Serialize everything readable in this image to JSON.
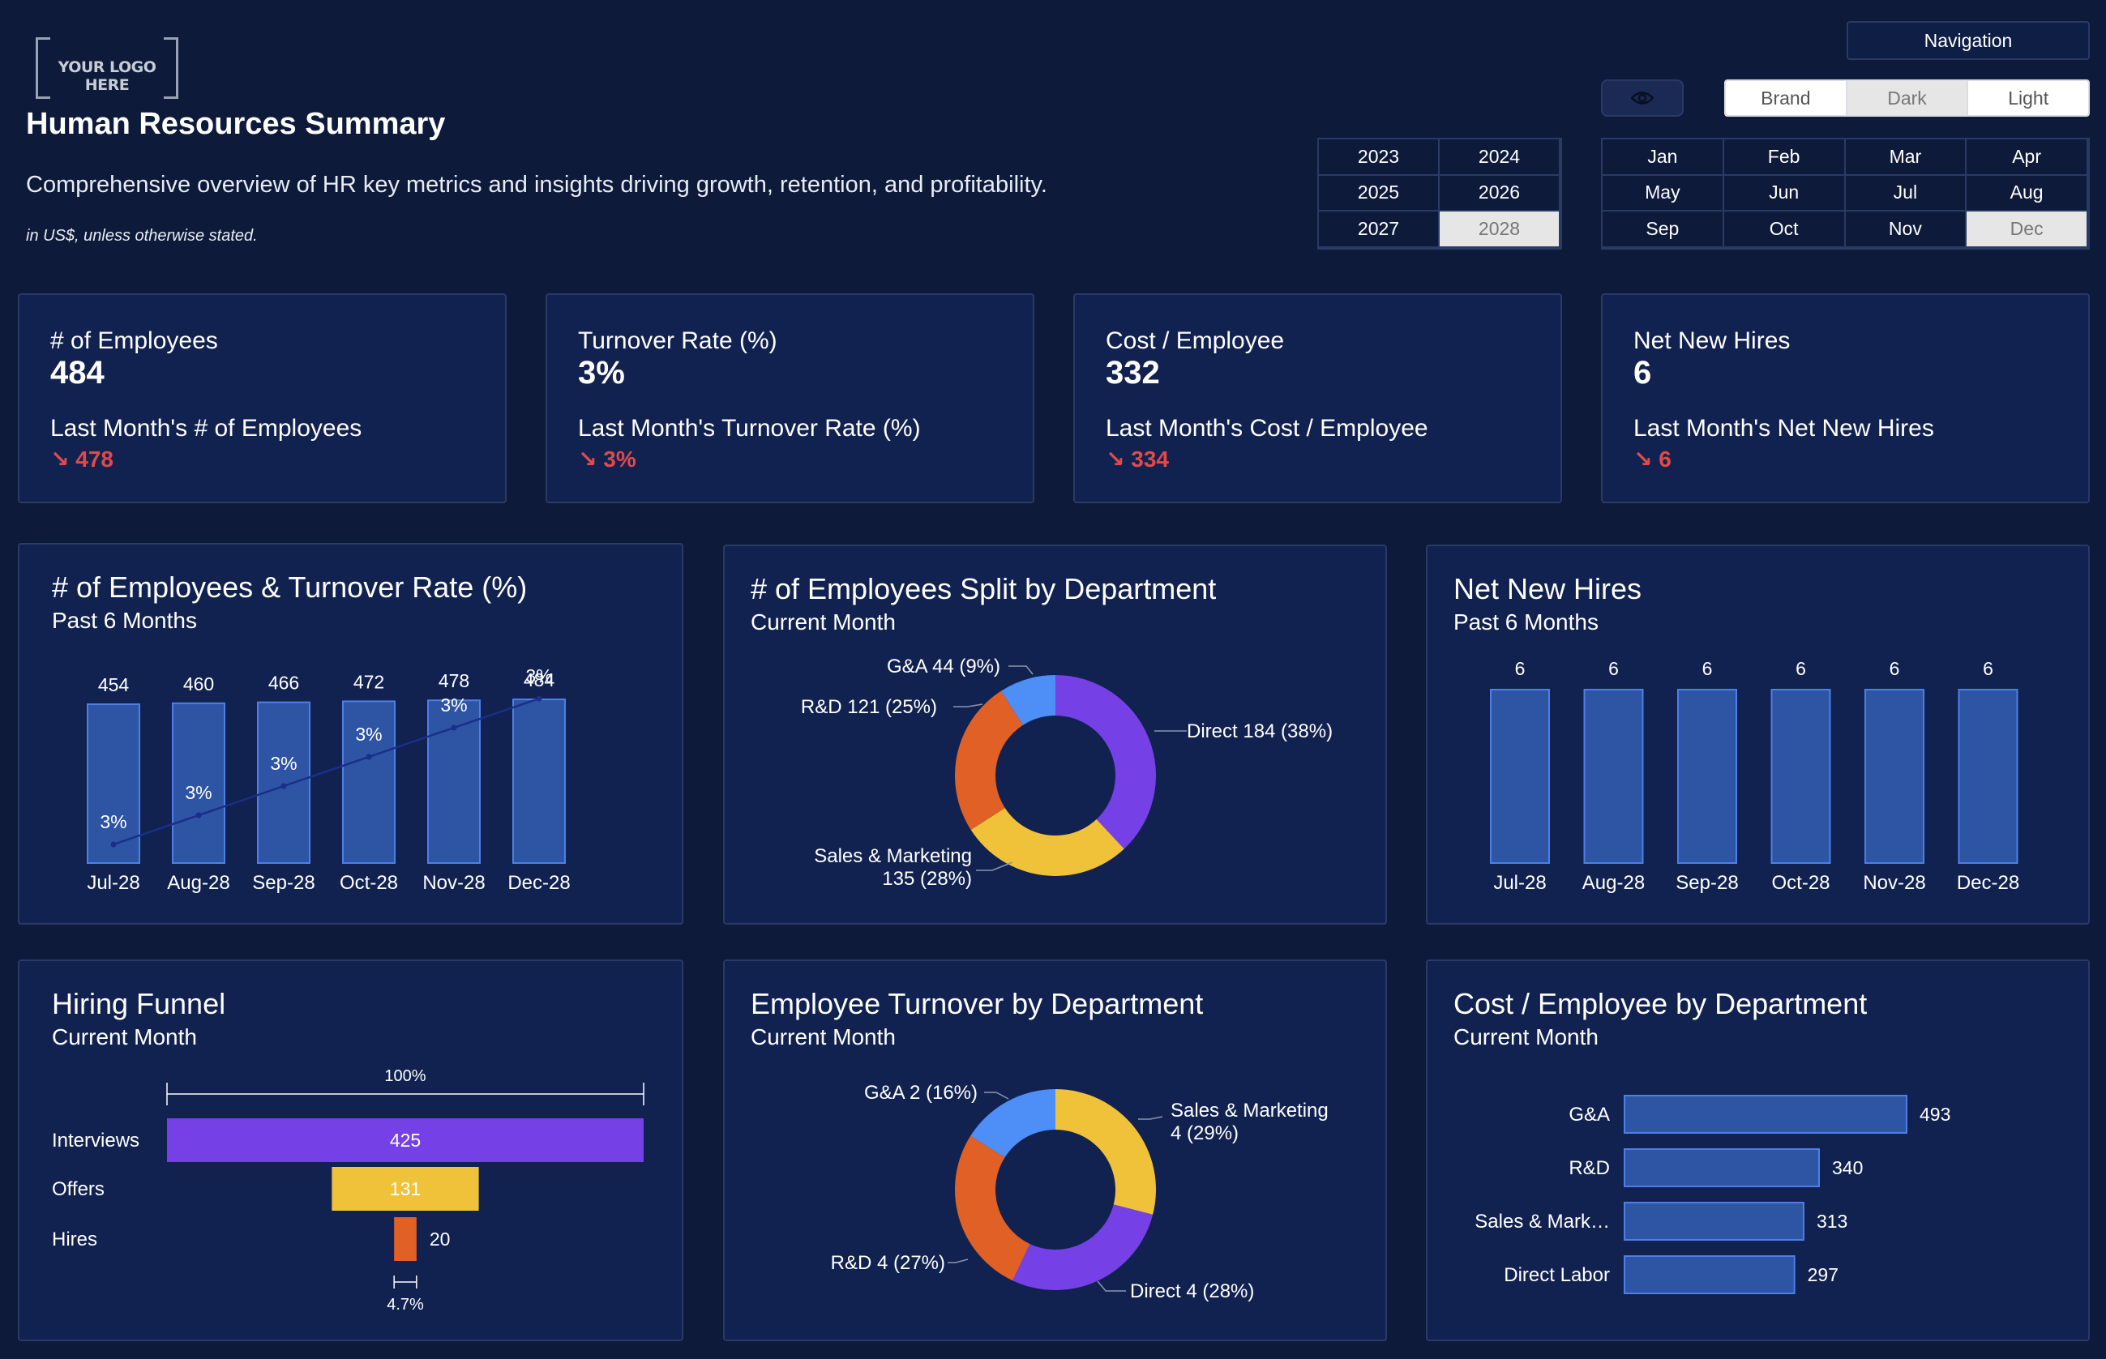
{
  "header": {
    "logo_text": "YOUR LOGO HERE",
    "title": "Human Resources Summary",
    "subtitle": "Comprehensive overview of HR key metrics and insights driving growth, retention, and profitability.",
    "note": "in US$, unless otherwise stated."
  },
  "controls": {
    "navigation_label": "Navigation",
    "eye_icon": "eye-icon",
    "themes": [
      "Brand",
      "Dark",
      "Light"
    ],
    "selected_theme": "Dark",
    "years": [
      "2023",
      "2024",
      "2025",
      "2026",
      "2027",
      "2028"
    ],
    "selected_year": "2028",
    "months": [
      "Jan",
      "Feb",
      "Mar",
      "Apr",
      "May",
      "Jun",
      "Jul",
      "Aug",
      "Sep",
      "Oct",
      "Nov",
      "Dec"
    ],
    "selected_month": "Dec"
  },
  "kpis": [
    {
      "label": "# of Employees",
      "value": "484",
      "prev_label": "Last Month's # of Employees",
      "prev_value": "↘ 478"
    },
    {
      "label": "Turnover Rate (%)",
      "value": "3%",
      "prev_label": "Last Month's Turnover Rate (%)",
      "prev_value": "↘ 3%"
    },
    {
      "label": "Cost / Employee",
      "value": "332",
      "prev_label": "Last Month's Cost / Employee",
      "prev_value": "↘ 334"
    },
    {
      "label": "Net New Hires",
      "value": "6",
      "prev_label": "Last Month's Net New Hires",
      "prev_value": "↘ 6"
    }
  ],
  "colors": {
    "bar_fill": "#2e54a4",
    "bar_stroke": "#4d7fe6",
    "purple": "#7540e6",
    "orange": "#e06025",
    "yellow": "#f0c23a",
    "blue": "#4d8ef7",
    "line": "#1a2f88",
    "negative": "#e04a4a"
  },
  "chart_data": [
    {
      "type": "bar",
      "title": "# of Employees & Turnover Rate (%)",
      "subtitle": "Past 6 Months",
      "categories": [
        "Jul-28",
        "Aug-28",
        "Sep-28",
        "Oct-28",
        "Nov-28",
        "Dec-28"
      ],
      "series": [
        {
          "name": "# of Employees",
          "type": "bar",
          "values": [
            454,
            460,
            466,
            472,
            478,
            484
          ]
        },
        {
          "name": "Turnover Rate (%)",
          "type": "line",
          "values": [
            2.6,
            2.7,
            2.8,
            2.9,
            3.0,
            3.1
          ],
          "labels": [
            "3%",
            "3%",
            "3%",
            "3%",
            "3%",
            "3%"
          ]
        }
      ]
    },
    {
      "type": "pie",
      "title": "# of Employees Split by Department",
      "subtitle": "Current Month",
      "slices": [
        {
          "name": "Direct",
          "value": 184,
          "label": "Direct 184 (38%)"
        },
        {
          "name": "Sales & Marketing",
          "value": 135,
          "label1": "Sales & Marketing",
          "label2": "135 (28%)"
        },
        {
          "name": "R&D",
          "value": 121,
          "label": "R&D 121 (25%)"
        },
        {
          "name": "G&A",
          "value": 44,
          "label": "G&A 44 (9%)"
        }
      ]
    },
    {
      "type": "bar",
      "title": "Net New Hires",
      "subtitle": "Past 6 Months",
      "categories": [
        "Jul-28",
        "Aug-28",
        "Sep-28",
        "Oct-28",
        "Nov-28",
        "Dec-28"
      ],
      "values": [
        6,
        6,
        6,
        6,
        6,
        6
      ]
    },
    {
      "type": "bar",
      "title": "Hiring Funnel",
      "subtitle": "Current Month",
      "categories": [
        "Interviews",
        "Offers",
        "Hires"
      ],
      "values": [
        425,
        131,
        20
      ],
      "top_label": "100%",
      "bottom_label": "4.7%"
    },
    {
      "type": "pie",
      "title": "Employee Turnover by Department",
      "subtitle": "Current Month",
      "slices": [
        {
          "name": "Sales & Marketing",
          "value": 29,
          "label1": "Sales & Marketing",
          "label2": "4 (29%)"
        },
        {
          "name": "Direct",
          "value": 28,
          "label": "Direct 4 (28%)"
        },
        {
          "name": "R&D",
          "value": 27,
          "label": "R&D 4 (27%)"
        },
        {
          "name": "G&A",
          "value": 16,
          "label": "G&A 2 (16%)"
        }
      ]
    },
    {
      "type": "bar",
      "title": "Cost / Employee by Department",
      "subtitle": "Current Month",
      "categories": [
        "G&A",
        "R&D",
        "Sales & Mark…",
        "Direct Labor"
      ],
      "values": [
        493,
        340,
        313,
        297
      ]
    }
  ]
}
